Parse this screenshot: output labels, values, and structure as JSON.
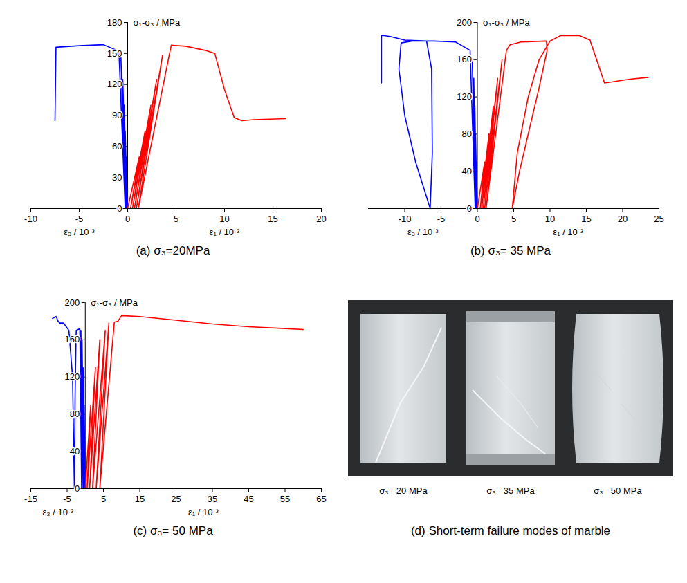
{
  "chart_data": [
    {
      "type": "line",
      "title": "(a) σ₃=20MPa",
      "ylabel": "σ₁-σ₃ / MPa",
      "xlabel": [
        "ε₃ / 10⁻³",
        "ε₁ / 10⁻³"
      ],
      "xlim": [
        -10,
        20
      ],
      "xticks": [
        -10,
        -5,
        0,
        5,
        10,
        15,
        20
      ],
      "ylim": [
        0,
        180
      ],
      "yticks": [
        0,
        30,
        60,
        90,
        120,
        150,
        180
      ],
      "series": [
        {
          "color": "#0000ff",
          "x": [
            0,
            -0.15,
            -0.05,
            -0.25,
            -0.1,
            -0.35,
            -0.15,
            -0.5,
            -0.2,
            -0.7,
            -0.25,
            -0.9,
            -2.5,
            -5,
            -7.4,
            -7.5
          ],
          "values": [
            0,
            50,
            0,
            75,
            0,
            100,
            0,
            125,
            0,
            148,
            0,
            152,
            158.5,
            157.5,
            156,
            85
          ]
        },
        {
          "color": "#ff0000",
          "x": [
            0,
            1.2,
            0.3,
            1.8,
            0.5,
            2.4,
            0.7,
            3.0,
            0.9,
            3.6,
            1.1,
            4.5,
            6,
            8,
            9,
            10,
            11,
            11.8,
            13,
            16.3
          ],
          "values": [
            0,
            50,
            0,
            75,
            0,
            100,
            0,
            125,
            0,
            148,
            0,
            158,
            157,
            153,
            150,
            115,
            88,
            85,
            86,
            87
          ]
        }
      ]
    },
    {
      "type": "line",
      "title": "(b) σ₃= 35 MPa",
      "ylabel": "σ₁-σ₃ / MPa",
      "xlabel": [
        "ε₃ / 10⁻³",
        "ε₁ / 10⁻³"
      ],
      "xlim": [
        -15,
        25
      ],
      "xticks": [
        -10,
        -5,
        0,
        5,
        10,
        15,
        20,
        25
      ],
      "ylim": [
        0,
        200
      ],
      "yticks": [
        0,
        40,
        80,
        120,
        160,
        200
      ],
      "series": [
        {
          "color": "#0000ff",
          "x": [
            0,
            -0.15,
            -0.05,
            -0.25,
            -0.1,
            -0.35,
            -0.15,
            -0.5,
            -0.2,
            -0.7,
            -0.3,
            -1,
            -3,
            -6,
            -9,
            -10.5,
            -10.8,
            -10,
            -8.5,
            -6.5,
            -6.2,
            -6.3,
            -7,
            -10,
            -12,
            -13,
            -13.2,
            -13.2
          ],
          "values": [
            0,
            50,
            0,
            80,
            0,
            110,
            0,
            140,
            0,
            160,
            0,
            170,
            179,
            180,
            180,
            178,
            150,
            100,
            50,
            0,
            60,
            150,
            180,
            181,
            185,
            186,
            186,
            135
          ]
        },
        {
          "color": "#ff0000",
          "x": [
            0,
            1,
            0.4,
            1.6,
            0.6,
            2.2,
            0.8,
            2.8,
            1,
            3.4,
            1.2,
            4,
            4.5,
            6,
            9.5,
            9.6,
            8.5,
            7,
            5.8,
            4.8,
            5.5,
            7,
            8.5,
            10,
            11.5,
            14,
            15.5,
            17.5,
            18.5,
            21,
            23.5
          ],
          "values": [
            0,
            50,
            0,
            80,
            0,
            110,
            0,
            140,
            0,
            160,
            0,
            170,
            176,
            179,
            180,
            170,
            130,
            80,
            40,
            0,
            60,
            120,
            160,
            180,
            186,
            186,
            181,
            135,
            136,
            139,
            141
          ]
        }
      ]
    },
    {
      "type": "line",
      "title": "(c) σ₃= 50 MPa",
      "ylabel": "σ₁-σ₃ / MPa",
      "xlabel": [
        "ε₃ / 10⁻³",
        "ε₁ / 10⁻³"
      ],
      "xlim": [
        -15,
        65
      ],
      "xticks": [
        -15,
        -5,
        5,
        15,
        25,
        35,
        45,
        55,
        65
      ],
      "ylim": [
        0,
        200
      ],
      "yticks": [
        0,
        40,
        80,
        120,
        160,
        200
      ],
      "series": [
        {
          "color": "#0000ff",
          "x": [
            0,
            -0.3,
            -0.1,
            -0.6,
            -0.3,
            -0.9,
            -0.6,
            -1.2,
            -1,
            -1.5,
            -2.5,
            -2.8,
            -3,
            -3.5,
            -4.5,
            -6,
            -7,
            -7.5,
            -8,
            -9
          ],
          "values": [
            0,
            90,
            0,
            130,
            0,
            160,
            0,
            170,
            0,
            172,
            170,
            100,
            0,
            120,
            170,
            178,
            178,
            180,
            185,
            183
          ]
        },
        {
          "color": "#ff0000",
          "x": [
            0,
            1.5,
            0.5,
            2.8,
            1.2,
            4,
            2,
            5.5,
            3,
            6.5,
            4,
            8,
            9,
            10,
            15,
            25,
            35,
            45,
            55,
            60
          ],
          "values": [
            0,
            90,
            0,
            130,
            0,
            160,
            0,
            170,
            0,
            178,
            0,
            179,
            180,
            186,
            185,
            181,
            177,
            174,
            172,
            171
          ]
        }
      ]
    }
  ],
  "photo": {
    "caption": "(d) Short-term failure modes of marble",
    "labels": [
      "σ₃= 20 MPa",
      "σ₃= 35 MPa",
      "σ₃= 50 MPa"
    ]
  }
}
